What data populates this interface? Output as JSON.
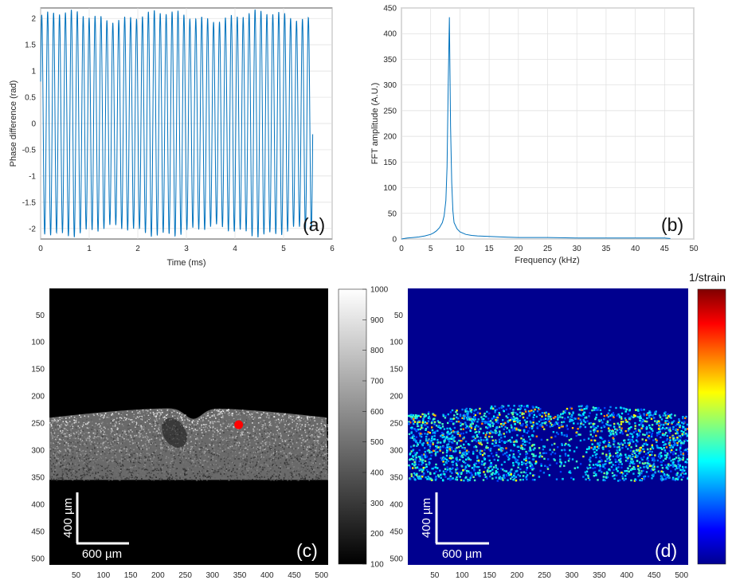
{
  "colors": {
    "line": "#0072bd",
    "grid": "#dedede",
    "axis": "#262626",
    "marker": "#ff0000",
    "image_bg": "#000000",
    "strain_bg": "#00008f"
  },
  "chart_data": [
    {
      "id": "a",
      "type": "line",
      "panel_label": "(a)",
      "xlabel": "Time (ms)",
      "ylabel": "Phase difference (rad)",
      "xlim": [
        0,
        6
      ],
      "ylim": [
        -2.2,
        2.2
      ],
      "xticks": [
        0,
        1,
        2,
        3,
        4,
        5,
        6
      ],
      "yticks": [
        -2,
        -1.5,
        -1,
        -0.5,
        0,
        0.5,
        1,
        1.5,
        2
      ],
      "grid": true,
      "series": [
        {
          "x_start": 0.0,
          "x_end": 5.6,
          "frequency_khz": 8.2,
          "amplitude": 2.05
        }
      ]
    },
    {
      "id": "b",
      "type": "line",
      "panel_label": "(b)",
      "xlabel": "Frequency (kHz)",
      "ylabel": "FFT amplitude (A.U.)",
      "xlim": [
        0,
        50
      ],
      "ylim": [
        0,
        450
      ],
      "xticks": [
        0,
        5,
        10,
        15,
        20,
        25,
        30,
        35,
        40,
        45,
        50
      ],
      "yticks": [
        0,
        50,
        100,
        150,
        200,
        250,
        300,
        350,
        400,
        450
      ],
      "grid": true,
      "series": [
        {
          "x": [
            0,
            1,
            2,
            3,
            4,
            5,
            5.5,
            6,
            6.5,
            7,
            7.3,
            7.6,
            7.8,
            8.0,
            8.2,
            8.4,
            8.6,
            8.8,
            9.0,
            9.5,
            10,
            11,
            12,
            13,
            15,
            17,
            20,
            25,
            30,
            35,
            40,
            45,
            46
          ],
          "y": [
            0,
            2,
            3,
            4,
            6,
            9,
            12,
            16,
            22,
            32,
            45,
            75,
            140,
            300,
            432,
            220,
            110,
            55,
            32,
            20,
            14,
            9,
            7,
            6,
            5,
            4,
            3,
            3,
            2,
            2,
            2,
            2,
            1
          ]
        }
      ]
    },
    {
      "id": "c",
      "type": "heatmap",
      "panel_label": "(c)",
      "colormap": "gray",
      "xlim": [
        1,
        512
      ],
      "ylim": [
        1,
        512
      ],
      "xticks": [
        50,
        100,
        150,
        200,
        250,
        300,
        350,
        400,
        450,
        500
      ],
      "yticks": [
        50,
        100,
        150,
        200,
        250,
        300,
        350,
        400,
        450,
        500
      ],
      "colorbar": {
        "min": 100,
        "max": 1000,
        "ticks": [
          100,
          200,
          300,
          400,
          500,
          600,
          700,
          800,
          900,
          1000
        ]
      },
      "marker": {
        "x": 348,
        "y": 253
      },
      "scalebar": {
        "horizontal": "600 µm",
        "vertical": "400 µm"
      }
    },
    {
      "id": "d",
      "type": "heatmap",
      "panel_label": "(d)",
      "colormap": "jet",
      "xlim": [
        1,
        512
      ],
      "ylim": [
        1,
        512
      ],
      "xticks": [
        50,
        100,
        150,
        200,
        250,
        300,
        350,
        400,
        450,
        500
      ],
      "yticks": [
        50,
        100,
        150,
        200,
        250,
        300,
        350,
        400,
        450,
        500
      ],
      "colorbar": {
        "title": "1/strain"
      },
      "scalebar": {
        "horizontal": "600 µm",
        "vertical": "400 µm"
      }
    }
  ]
}
